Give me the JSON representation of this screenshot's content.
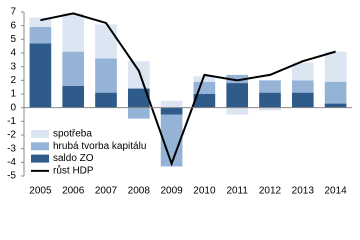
{
  "chart_data": {
    "type": "bar",
    "categories": [
      "2005",
      "2006",
      "2007",
      "2008",
      "2009",
      "2010",
      "2011",
      "2012",
      "2013",
      "2014"
    ],
    "series": [
      {
        "name": "saldo ZO",
        "color": "#2f5b8a",
        "values": [
          4.7,
          1.6,
          1.1,
          1.4,
          -0.5,
          1.0,
          1.8,
          1.1,
          1.1,
          0.3
        ]
      },
      {
        "name": "hrubá tvorba kapitálu",
        "color": "#95b3d7",
        "values": [
          1.2,
          2.5,
          2.5,
          -0.8,
          -3.8,
          0.9,
          0.6,
          0.9,
          0.9,
          1.6
        ]
      },
      {
        "name": "spotřeba",
        "color": "#dce6f2",
        "values": [
          0.7,
          2.8,
          2.5,
          2.0,
          0.5,
          0.4,
          -0.5,
          -0.2,
          1.3,
          2.2
        ]
      },
      {
        "name": "růst HDP",
        "color": "#000000",
        "type": "line",
        "values": [
          6.4,
          6.9,
          6.2,
          2.7,
          -4.1,
          2.4,
          2.0,
          2.4,
          3.4,
          4.1
        ]
      }
    ],
    "legend_order": [
      2,
      1,
      0,
      3
    ],
    "legend": "lower left",
    "ylim": [
      -5,
      7
    ],
    "yticks": [
      -5,
      -4,
      -3,
      -2,
      -1,
      0,
      1,
      2,
      3,
      4,
      5,
      6,
      7
    ]
  }
}
